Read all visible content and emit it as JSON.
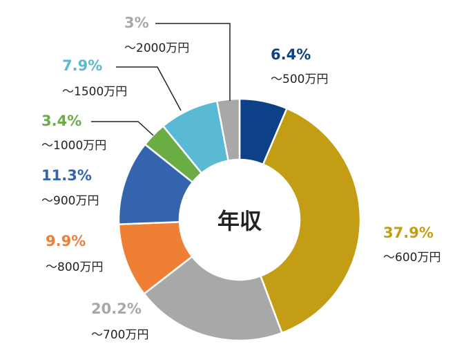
{
  "chart_data": {
    "type": "pie",
    "donut": true,
    "center_label": "年収",
    "slices": [
      {
        "label": "〜500万円",
        "value": 6.4,
        "value_label": "6.4%",
        "color": "#0c4188"
      },
      {
        "label": "〜600万円",
        "value": 37.9,
        "value_label": "37.9%",
        "color": "#c39d14"
      },
      {
        "label": "〜700万円",
        "value": 20.2,
        "value_label": "20.2%",
        "color": "#a8a8a8"
      },
      {
        "label": "〜800万円",
        "value": 9.9,
        "value_label": "9.9%",
        "color": "#ee7f34"
      },
      {
        "label": "〜900万円",
        "value": 11.3,
        "value_label": "11.3%",
        "color": "#3364ad"
      },
      {
        "label": "〜1000万円",
        "value": 3.4,
        "value_label": "3.4%",
        "color": "#6aad45"
      },
      {
        "label": "〜1500万円",
        "value": 7.9,
        "value_label": "7.9%",
        "color": "#5ab9d4"
      },
      {
        "label": "〜2000万円",
        "value": 3,
        "value_label": "3%",
        "color": "#a8a8a8"
      }
    ]
  }
}
